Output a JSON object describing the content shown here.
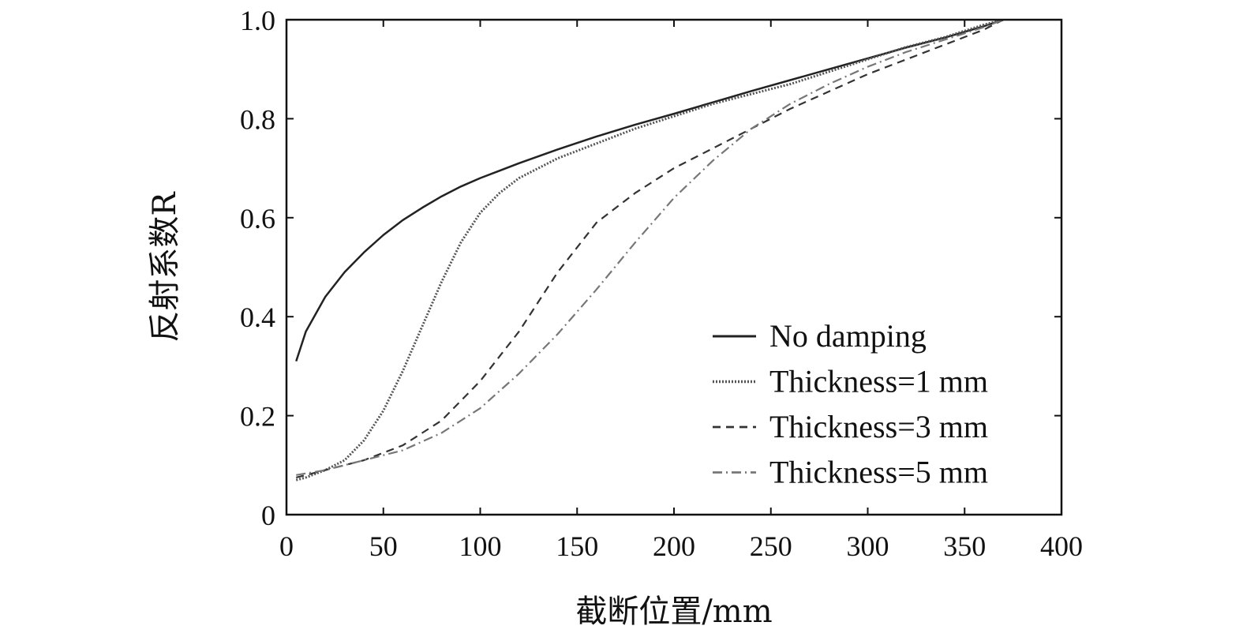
{
  "chart_data": {
    "type": "line",
    "xlabel": "截断位置/mm",
    "ylabel": "反射系数R",
    "xlim": [
      0,
      400
    ],
    "ylim": [
      0,
      1.0
    ],
    "xticks": [
      0,
      50,
      100,
      150,
      200,
      250,
      300,
      350,
      400
    ],
    "xtick_labels": [
      "0",
      "50",
      "100",
      "150",
      "200",
      "250",
      "300",
      "350",
      "400"
    ],
    "yticks": [
      0,
      0.2,
      0.4,
      0.6,
      0.8,
      1.0
    ],
    "ytick_labels": [
      "0",
      "0.2",
      "0.4",
      "0.6",
      "0.8",
      "1.0"
    ],
    "grid": false,
    "legend_position": "bottom-right",
    "series": [
      {
        "name": "No damping",
        "style": "solid",
        "color": "#222222",
        "x": [
          5,
          10,
          20,
          30,
          40,
          50,
          60,
          70,
          80,
          90,
          100,
          120,
          140,
          160,
          180,
          200,
          220,
          240,
          260,
          280,
          300,
          320,
          340,
          360,
          370
        ],
        "y": [
          0.31,
          0.37,
          0.44,
          0.49,
          0.53,
          0.565,
          0.595,
          0.62,
          0.643,
          0.663,
          0.68,
          0.71,
          0.738,
          0.764,
          0.788,
          0.81,
          0.833,
          0.856,
          0.878,
          0.9,
          0.922,
          0.944,
          0.964,
          0.987,
          1.0
        ]
      },
      {
        "name": "Thickness=1 mm",
        "style": "dotted",
        "color": "#555555",
        "x": [
          5,
          10,
          20,
          30,
          40,
          50,
          60,
          70,
          80,
          90,
          100,
          110,
          120,
          140,
          160,
          180,
          200,
          220,
          240,
          260,
          280,
          300,
          320,
          340,
          360,
          370
        ],
        "y": [
          0.07,
          0.075,
          0.09,
          0.11,
          0.15,
          0.21,
          0.29,
          0.38,
          0.47,
          0.55,
          0.61,
          0.65,
          0.68,
          0.72,
          0.75,
          0.78,
          0.805,
          0.83,
          0.85,
          0.87,
          0.895,
          0.92,
          0.945,
          0.965,
          0.99,
          1.0
        ]
      },
      {
        "name": "Thickness=3 mm",
        "style": "dashed",
        "color": "#333333",
        "x": [
          5,
          20,
          40,
          60,
          80,
          100,
          120,
          130,
          140,
          150,
          160,
          180,
          200,
          220,
          240,
          260,
          280,
          300,
          320,
          340,
          360,
          370
        ],
        "y": [
          0.075,
          0.09,
          0.11,
          0.14,
          0.19,
          0.27,
          0.37,
          0.43,
          0.49,
          0.54,
          0.59,
          0.65,
          0.7,
          0.74,
          0.78,
          0.82,
          0.855,
          0.89,
          0.92,
          0.95,
          0.98,
          1.0
        ]
      },
      {
        "name": "Thickness=5 mm",
        "style": "dashdot",
        "color": "#777777",
        "x": [
          5,
          20,
          40,
          60,
          80,
          100,
          120,
          140,
          160,
          180,
          200,
          220,
          240,
          260,
          280,
          300,
          320,
          340,
          360,
          370
        ],
        "y": [
          0.08,
          0.09,
          0.11,
          0.13,
          0.165,
          0.215,
          0.285,
          0.365,
          0.455,
          0.55,
          0.64,
          0.715,
          0.78,
          0.83,
          0.87,
          0.905,
          0.935,
          0.96,
          0.985,
          1.0
        ]
      }
    ]
  }
}
